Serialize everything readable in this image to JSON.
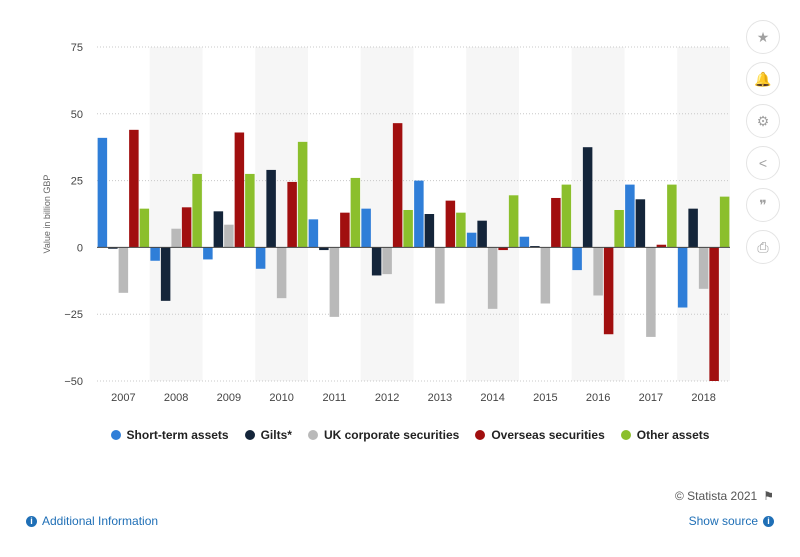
{
  "chart_data": {
    "type": "bar",
    "categories": [
      "2007",
      "2008",
      "2009",
      "2010",
      "2011",
      "2012",
      "2013",
      "2014",
      "2015",
      "2016",
      "2017",
      "2018"
    ],
    "series": [
      {
        "name": "Short-term assets",
        "color": "#2f7ed8",
        "values": [
          41,
          -5,
          -4.5,
          -8,
          10.5,
          14.5,
          25,
          5.5,
          4,
          -8.5,
          23.5,
          -22.5
        ]
      },
      {
        "name": "Gilts*",
        "color": "#14253a",
        "values": [
          -0.5,
          -20,
          13.5,
          29,
          -1,
          -10.5,
          12.5,
          10,
          0.5,
          37.5,
          18,
          14.5
        ]
      },
      {
        "name": "UK corporate securities",
        "color": "#b9b9b9",
        "values": [
          -17,
          7,
          8.5,
          -19,
          -26,
          -10,
          -21,
          -23,
          -21,
          -18,
          -33.5,
          -15.5
        ]
      },
      {
        "name": "Overseas securities",
        "color": "#a10f0f",
        "values": [
          44,
          15,
          43,
          24.5,
          13,
          46.5,
          17.5,
          -1,
          18.5,
          -32.5,
          1,
          -50
        ]
      },
      {
        "name": "Other assets",
        "color": "#8bbf2c",
        "values": [
          14.5,
          27.5,
          27.5,
          39.5,
          26,
          14,
          13,
          19.5,
          23.5,
          14,
          23.5,
          19
        ]
      }
    ],
    "ylabel": "Value in billion GBP",
    "ylim": [
      -50,
      75
    ],
    "yticks": [
      -50,
      -25,
      0,
      25,
      50,
      75
    ],
    "grid": true,
    "legend_position": "bottom"
  },
  "legend": [
    {
      "label": "Short-term assets",
      "color": "#2f7ed8"
    },
    {
      "label": "Gilts*",
      "color": "#14253a"
    },
    {
      "label": "UK corporate securities",
      "color": "#b9b9b9"
    },
    {
      "label": "Overseas securities",
      "color": "#a10f0f"
    },
    {
      "label": "Other assets",
      "color": "#8bbf2c"
    }
  ],
  "sidebar": [
    {
      "icon": "star-icon",
      "glyph": "★"
    },
    {
      "icon": "bell-icon",
      "glyph": "🔔"
    },
    {
      "icon": "gear-icon",
      "glyph": "⚙"
    },
    {
      "icon": "share-icon",
      "glyph": "<"
    },
    {
      "icon": "quote-icon",
      "glyph": "❞"
    },
    {
      "icon": "print-icon",
      "glyph": "⎙"
    }
  ],
  "footer": {
    "credit": "© Statista 2021",
    "additional_info": "Additional Information",
    "show_source": "Show source"
  }
}
